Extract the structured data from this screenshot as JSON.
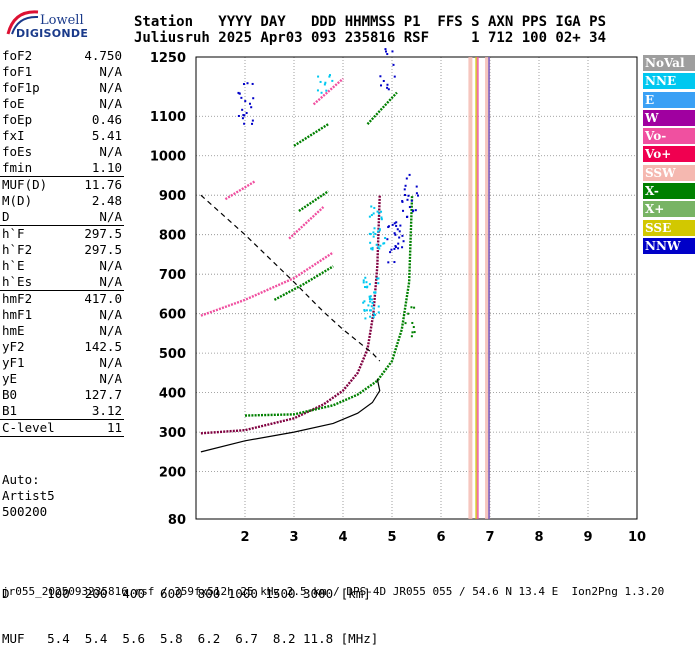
{
  "logo": {
    "line1": "Lowell",
    "line2": "DIGISONDE"
  },
  "header": {
    "line1": "Station   YYYY DAY   DDD HHMMSS P1  FFS S AXN PPS IGA PS",
    "line2": "Juliusruh 2025 Apr03 093 235816 RSF     1 712 100 02+ 34"
  },
  "params": [
    {
      "label": "foF2",
      "value": "4.750"
    },
    {
      "label": "foF1",
      "value": "N/A"
    },
    {
      "label": "foF1p",
      "value": "N/A"
    },
    {
      "label": "foE",
      "value": "N/A"
    },
    {
      "label": "foEp",
      "value": "0.46"
    },
    {
      "label": "fxI",
      "value": "5.41"
    },
    {
      "label": "foEs",
      "value": "N/A"
    },
    {
      "label": "fmin",
      "value": "1.10"
    },
    {
      "label": "MUF(D)",
      "value": "11.76"
    },
    {
      "label": "M(D)",
      "value": "2.48"
    },
    {
      "label": "D",
      "value": "N/A"
    },
    {
      "label": "h`F",
      "value": "297.5"
    },
    {
      "label": "h`F2",
      "value": "297.5"
    },
    {
      "label": "h`E",
      "value": "N/A"
    },
    {
      "label": "h`Es",
      "value": "N/A"
    },
    {
      "label": "hmF2",
      "value": "417.0"
    },
    {
      "label": "hmF1",
      "value": "N/A"
    },
    {
      "label": "hmE",
      "value": "N/A"
    },
    {
      "label": "yF2",
      "value": "142.5"
    },
    {
      "label": "yF1",
      "value": "N/A"
    },
    {
      "label": "yE",
      "value": "N/A"
    },
    {
      "label": "B0",
      "value": "127.7"
    },
    {
      "label": "B1",
      "value": "3.12"
    },
    {
      "label": "C-level",
      "value": "11"
    }
  ],
  "auto": {
    "line1": "Auto:",
    "line2": "Artist5",
    "line3": "500200"
  },
  "legend": [
    {
      "label": "NoVal",
      "color": "#9e9e9e"
    },
    {
      "label": "NNE",
      "color": "#00c8f0"
    },
    {
      "label": "E",
      "color": "#3aa0f5"
    },
    {
      "label": "W",
      "color": "#a000a0"
    },
    {
      "label": "Vo-",
      "color": "#f050a0"
    },
    {
      "label": "Vo+",
      "color": "#f00050"
    },
    {
      "label": "SSW",
      "color": "#f5b8b0"
    },
    {
      "label": "X-",
      "color": "#008000"
    },
    {
      "label": "X+",
      "color": "#78b464"
    },
    {
      "label": "SSE",
      "color": "#d2c800"
    },
    {
      "label": "NNW",
      "color": "#0000c8"
    }
  ],
  "bottom": {
    "line1": "D     100  200  400  600  800 1000 1500 3000 [km]",
    "line2": "MUF   5.4  5.4  5.6  5.8  6.2  6.7  8.2 11.8 [MHz]"
  },
  "footer": "jr055_2025093235816.rsf / 359fx512h 25 kHz 2.5 km / DPS-4D JR055 055 / 54.6 N 13.4 E  Ion2Png 1.3.20",
  "chart_data": {
    "type": "scatter",
    "x_ticks": [
      "2",
      "3",
      "4",
      "5",
      "6",
      "7",
      "8",
      "9",
      "10"
    ],
    "y_ticks": [
      "80",
      "200",
      "300",
      "400",
      "500",
      "600",
      "700",
      "800",
      "900",
      "1000",
      "1100",
      "1250"
    ],
    "xlim": [
      1,
      10
    ],
    "ylim": [
      80,
      1250
    ],
    "grid": true,
    "series": [
      {
        "color": "#800040",
        "style": "trace",
        "x": [
          1.1,
          2.0,
          3.0,
          3.6,
          4.0,
          4.3,
          4.5,
          4.62,
          4.7,
          4.75
        ],
        "y": [
          297,
          305,
          335,
          370,
          405,
          450,
          510,
          600,
          720,
          900
        ]
      },
      {
        "color": "#008000",
        "style": "trace",
        "x": [
          2.0,
          3.0,
          3.8,
          4.3,
          4.7,
          5.0,
          5.2,
          5.35,
          5.41
        ],
        "y": [
          342,
          345,
          368,
          395,
          430,
          480,
          560,
          680,
          900
        ]
      },
      {
        "color": "#000000",
        "style": "solid",
        "x": [
          1.1,
          2.0,
          3.0,
          3.8,
          4.3,
          4.6,
          4.75,
          4.7
        ],
        "y": [
          250,
          278,
          300,
          322,
          348,
          375,
          405,
          435
        ]
      },
      {
        "color": "#000000",
        "style": "dashed",
        "x": [
          1.1,
          2.0,
          3.0,
          3.6,
          4.0,
          4.3,
          4.6,
          4.75
        ],
        "y": [
          900,
          800,
          680,
          605,
          560,
          530,
          500,
          480
        ]
      },
      {
        "color": "#f050a0",
        "style": "trace",
        "x": [
          1.1,
          2.0,
          3.0,
          3.8
        ],
        "y": [
          595,
          635,
          690,
          755
        ]
      },
      {
        "color": "#f050a0",
        "style": "trace",
        "x": [
          1.6,
          2.2
        ],
        "y": [
          890,
          935
        ]
      },
      {
        "color": "#008000",
        "style": "trace",
        "x": [
          2.6,
          3.2,
          3.8
        ],
        "y": [
          635,
          675,
          720
        ]
      },
      {
        "color": "#f050a0",
        "style": "trace",
        "x": [
          2.9,
          3.6
        ],
        "y": [
          790,
          870
        ]
      },
      {
        "color": "#008000",
        "style": "trace",
        "x": [
          3.1,
          3.7
        ],
        "y": [
          860,
          910
        ]
      },
      {
        "color": "#f050a0",
        "style": "trace",
        "x": [
          3.4,
          4.0
        ],
        "y": [
          1130,
          1195
        ]
      },
      {
        "color": "#008000",
        "style": "trace",
        "x": [
          3.0,
          3.7
        ],
        "y": [
          1025,
          1080
        ]
      },
      {
        "color": "#008000",
        "style": "trace",
        "x": [
          4.5,
          5.1
        ],
        "y": [
          1080,
          1160
        ]
      }
    ]
  }
}
